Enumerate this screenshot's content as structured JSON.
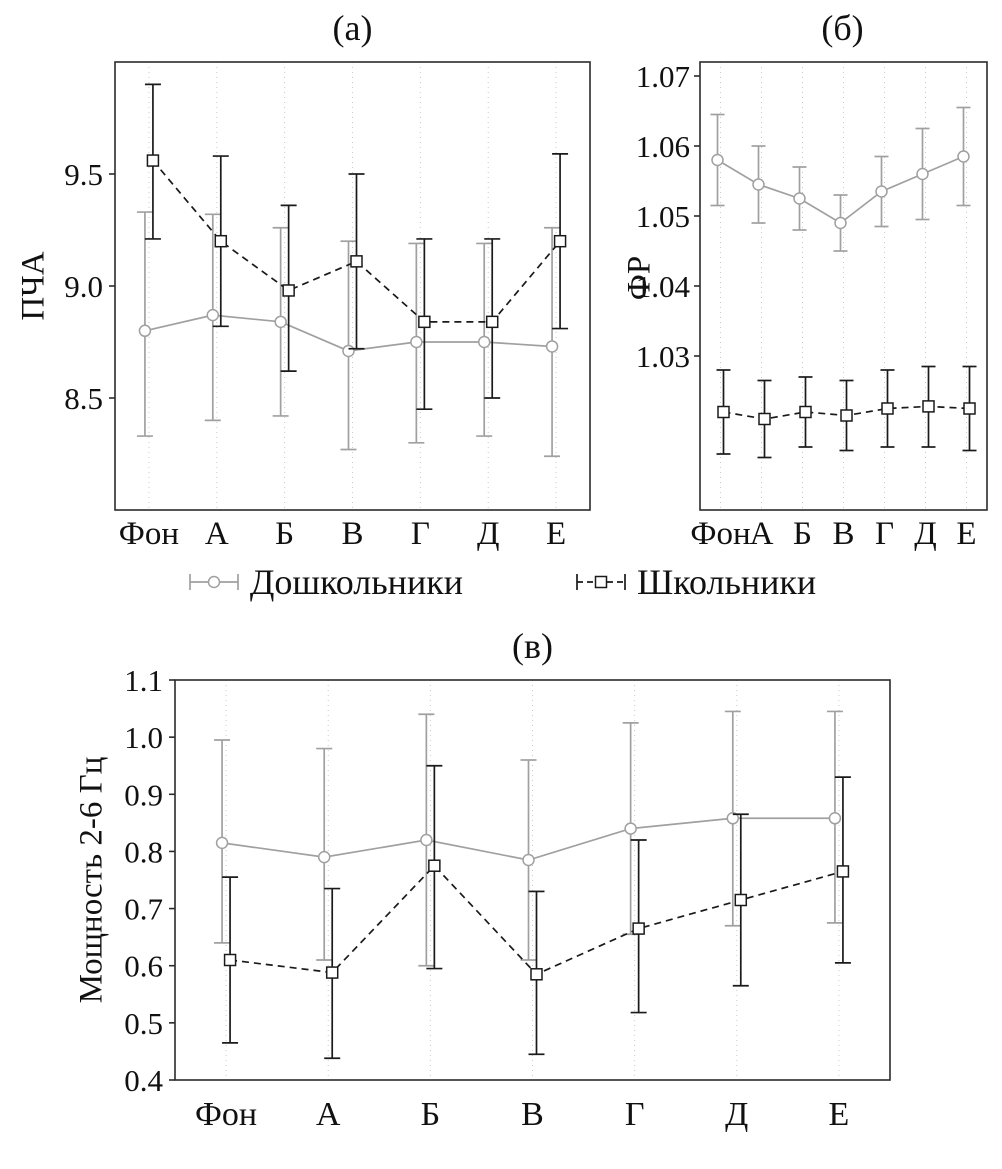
{
  "legend": {
    "items": [
      {
        "label": "Дошкольники",
        "marker": "circle",
        "line": "solid",
        "color": "#a0a0a0"
      },
      {
        "label": "Школьники",
        "marker": "square",
        "line": "dashed",
        "color": "#1a1a1a"
      }
    ]
  },
  "chart_data": [
    {
      "type": "line",
      "title": "(а)",
      "ylabel": "ПЧА",
      "xlabel": "",
      "categories": [
        "Фон",
        "А",
        "Б",
        "В",
        "Г",
        "Д",
        "Е"
      ],
      "ylim": [
        8.0,
        10.0
      ],
      "yticks": [
        "8.5",
        "9.0",
        "9.5"
      ],
      "grid": "vertical-dotted",
      "legend_position": "below-figure",
      "series": [
        {
          "name": "Дошкольники",
          "marker": "circle",
          "line": "solid",
          "color": "#a0a0a0",
          "values": [
            8.8,
            8.87,
            8.84,
            8.71,
            8.75,
            8.75,
            8.73
          ],
          "err_low": [
            8.33,
            8.4,
            8.42,
            8.27,
            8.3,
            8.33,
            8.24
          ],
          "err_high": [
            9.33,
            9.32,
            9.26,
            9.2,
            9.19,
            9.19,
            9.26
          ]
        },
        {
          "name": "Школьники",
          "marker": "square",
          "line": "dashed",
          "color": "#1a1a1a",
          "values": [
            9.56,
            9.2,
            8.98,
            9.11,
            8.84,
            8.84,
            9.2
          ],
          "err_low": [
            9.21,
            8.82,
            8.62,
            8.72,
            8.45,
            8.5,
            8.81
          ],
          "err_high": [
            9.9,
            9.58,
            9.36,
            9.5,
            9.21,
            9.21,
            9.59
          ]
        }
      ]
    },
    {
      "type": "line",
      "title": "(б)",
      "ylabel": "ФР",
      "xlabel": "",
      "categories": [
        "Фон",
        "А",
        "Б",
        "В",
        "Г",
        "Д",
        "Е"
      ],
      "ylim": [
        1.008,
        1.072
      ],
      "yticks": [
        "1.03",
        "1.04",
        "1.05",
        "1.06",
        "1.07"
      ],
      "grid": "vertical-dotted",
      "legend_position": "below-figure",
      "series": [
        {
          "name": "Дошкольники",
          "marker": "circle",
          "line": "solid",
          "color": "#a0a0a0",
          "values": [
            1.058,
            1.0545,
            1.0525,
            1.049,
            1.0535,
            1.056,
            1.0585
          ],
          "err_low": [
            1.0515,
            1.049,
            1.048,
            1.045,
            1.0485,
            1.0495,
            1.0515
          ],
          "err_high": [
            1.0645,
            1.06,
            1.057,
            1.053,
            1.0585,
            1.0625,
            1.0655
          ]
        },
        {
          "name": "Школьники",
          "marker": "square",
          "line": "dashed",
          "color": "#1a1a1a",
          "values": [
            1.022,
            1.021,
            1.022,
            1.0215,
            1.0225,
            1.0228,
            1.0225
          ],
          "err_low": [
            1.016,
            1.0155,
            1.017,
            1.0165,
            1.017,
            1.017,
            1.0165
          ],
          "err_high": [
            1.028,
            1.0265,
            1.027,
            1.0265,
            1.028,
            1.0285,
            1.0285
          ]
        }
      ]
    },
    {
      "type": "line",
      "title": "(в)",
      "ylabel": "Мощность 2-6 Гц",
      "xlabel": "",
      "categories": [
        "Фон",
        "А",
        "Б",
        "В",
        "Г",
        "Д",
        "Е"
      ],
      "ylim": [
        0.4,
        1.1
      ],
      "yticks": [
        "0.4",
        "0.5",
        "0.6",
        "0.7",
        "0.8",
        "0.9",
        "1.0",
        "1.1"
      ],
      "grid": "vertical-dotted",
      "legend_position": "below-figure",
      "series": [
        {
          "name": "Дошкольники",
          "marker": "circle",
          "line": "solid",
          "color": "#a0a0a0",
          "values": [
            0.815,
            0.79,
            0.82,
            0.785,
            0.84,
            0.858,
            0.858
          ],
          "err_low": [
            0.64,
            0.61,
            0.6,
            0.61,
            0.655,
            0.67,
            0.675
          ],
          "err_high": [
            0.995,
            0.98,
            1.04,
            0.96,
            1.025,
            1.045,
            1.045
          ]
        },
        {
          "name": "Школьники",
          "marker": "square",
          "line": "dashed",
          "color": "#1a1a1a",
          "values": [
            0.61,
            0.588,
            0.775,
            0.585,
            0.665,
            0.715,
            0.765
          ],
          "err_low": [
            0.465,
            0.438,
            0.595,
            0.445,
            0.518,
            0.565,
            0.605
          ],
          "err_high": [
            0.755,
            0.735,
            0.95,
            0.73,
            0.82,
            0.865,
            0.93
          ]
        }
      ]
    }
  ]
}
